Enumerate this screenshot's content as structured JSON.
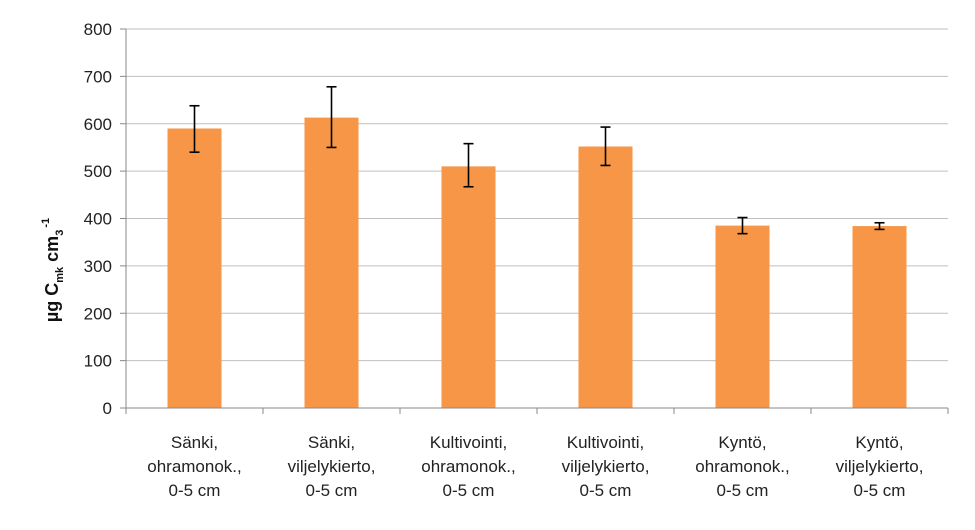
{
  "chart_data": {
    "type": "bar",
    "ylabel": {
      "main": "µg C",
      "sub": "mk",
      "unit": " cm",
      "unit_sub": "3",
      "unit_sup": "-1"
    },
    "ylim": [
      0,
      800
    ],
    "yticks": [
      0,
      100,
      200,
      300,
      400,
      500,
      600,
      700,
      800
    ],
    "grid": true,
    "legend": "none",
    "bar_color": "#F79646",
    "grid_color": "#BFBFBF",
    "error_color": "#000000",
    "categories": [
      [
        "Sänki,",
        "ohramonok.,",
        "0-5 cm"
      ],
      [
        "Sänki,",
        "viljelykierto,",
        "0-5 cm"
      ],
      [
        "Kultivointi,",
        "ohramonok.,",
        "0-5 cm"
      ],
      [
        "Kultivointi,",
        "viljelykierto,",
        "0-5 cm"
      ],
      [
        "Kyntö,",
        "ohramonok.,",
        "0-5 cm"
      ],
      [
        "Kyntö,",
        "viljelykierto,",
        "0-5 cm"
      ]
    ],
    "values": [
      590,
      613,
      510,
      552,
      385,
      384
    ],
    "error_low": [
      540,
      550,
      467,
      512,
      368,
      377
    ],
    "error_high": [
      638,
      678,
      558,
      593,
      402,
      391
    ]
  }
}
